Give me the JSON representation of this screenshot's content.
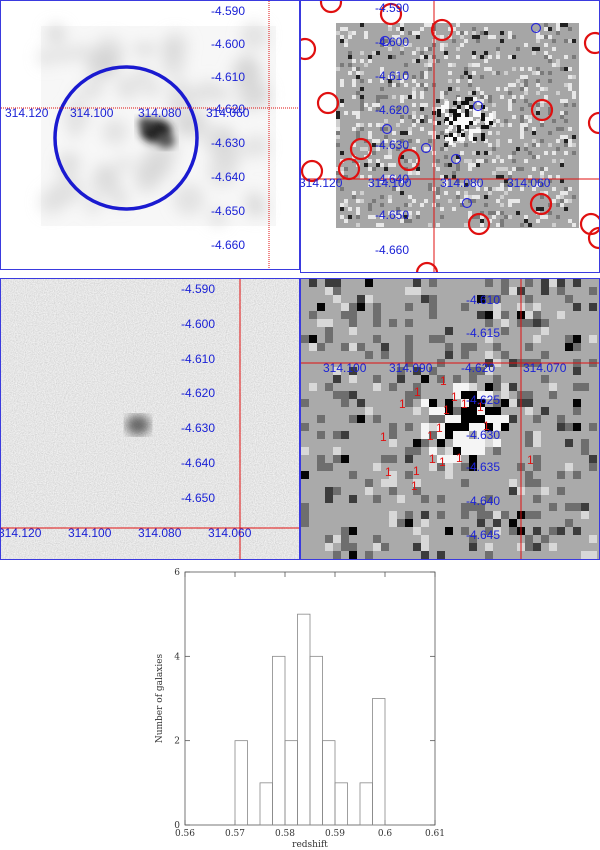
{
  "panel1": {
    "dec_labels": [
      "-4.590",
      "-4.600",
      "-4.610",
      "-4.620",
      "-4.630",
      "-4.640",
      "-4.650",
      "-4.660"
    ],
    "ra_labels": [
      "314.120",
      "314.100",
      "314.080",
      "314.060"
    ]
  },
  "panel2": {
    "dec_labels": [
      "-4.590",
      "-4.600",
      "-4.610",
      "-4.620",
      "-4.630",
      "-4.640",
      "-4.650",
      "-4.660"
    ],
    "ra_labels": [
      "314.120",
      "314.100",
      "314.080",
      "314.060"
    ]
  },
  "panel3": {
    "dec_labels": [
      "-4.590",
      "-4.600",
      "-4.610",
      "-4.620",
      "-4.630",
      "-4.640",
      "-4.650"
    ],
    "ra_labels": [
      "314.120",
      "314.100",
      "314.080",
      "314.060"
    ]
  },
  "panel4": {
    "dec_labels": [
      "-4.610",
      "-4.615",
      "-4.620",
      "-4.625",
      "-4.630",
      "-4.635",
      "-4.640",
      "-4.645"
    ],
    "ra_labels": [
      "314.100",
      "314.090",
      "314.080",
      "314.070"
    ],
    "marker_label": "1"
  },
  "colors": {
    "coord_label": "#1b22d6",
    "cross": "#e01010",
    "border": "#3a3adf",
    "circle": "#1a1ad0"
  },
  "chart_data": {
    "type": "histogram",
    "xlabel": "redshift",
    "ylabel": "Number of galaxies",
    "xlim": [
      0.56,
      0.61
    ],
    "ylim": [
      0,
      6
    ],
    "xticks": [
      "0.56",
      "0.57",
      "0.58",
      "0.59",
      "0.6",
      "0.61"
    ],
    "yticks": [
      "0",
      "2",
      "4",
      "6"
    ],
    "bin_edges": [
      0.57,
      0.5725,
      0.575,
      0.5775,
      0.58,
      0.5825,
      0.585,
      0.5875,
      0.59,
      0.5925,
      0.595,
      0.5975,
      0.6,
      0.6025
    ],
    "counts": [
      2,
      0,
      1,
      4,
      2,
      5,
      4,
      2,
      1,
      0,
      1,
      3,
      0
    ]
  }
}
